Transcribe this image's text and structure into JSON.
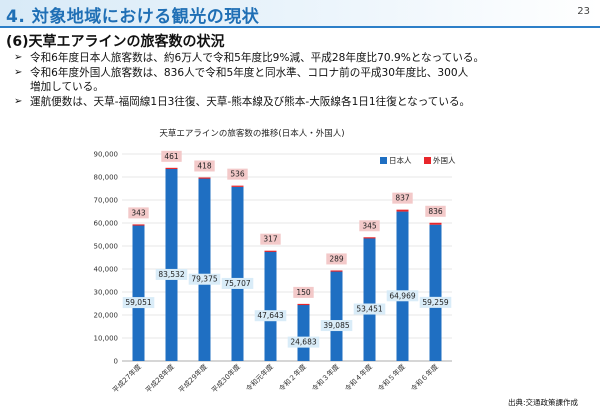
{
  "header": {
    "title": "4. 対象地域における観光の現状",
    "page_number": "23"
  },
  "section_title": "(6)天草エアラインの旅客数の状況",
  "bullets": [
    "令和6年度日本人旅客数は、約6万人で令和5年度比9%減、平成28年度比70.9%となっている。",
    "令和6年度外国人旅客数は、836人で令和5年度と同水準、コロナ前の平成30年度比、300人",
    "増加している。",
    "運航便数は、天草-福岡線1日3往復、天草-熊本線及び熊本-大阪線各1日1往復となっている。"
  ],
  "source_note": "出典:交通政策課作成",
  "colors": {
    "japanese": "#1f6fc2",
    "foreign": "#e8262b",
    "header_text": "#1f6fb5",
    "japanese_label_bg": "#d9ecf8",
    "foreign_label_bg": "#f3c9c9"
  },
  "chart_data": {
    "type": "bar",
    "stacked": true,
    "title": "天草エアラインの旅客数の推移(日本人・外国人)",
    "categories": [
      "平成27年度",
      "平成28年度",
      "平成29年度",
      "平成30年度",
      "令和元年度",
      "令和２年度",
      "令和３年度",
      "令和４年度",
      "令和５年度",
      "令和６年度"
    ],
    "series": [
      {
        "name": "日本人",
        "values": [
          59051,
          83532,
          79375,
          75707,
          47643,
          24683,
          39085,
          53451,
          64969,
          59259
        ]
      },
      {
        "name": "外国人",
        "values": [
          343,
          461,
          418,
          536,
          317,
          150,
          289,
          345,
          837,
          836
        ]
      }
    ],
    "value_labels": {
      "japanese": [
        "59,051",
        "83,532",
        "79,375",
        "75,707",
        "47,643",
        "24,683",
        "39,085",
        "53,451",
        "64,969",
        "59,259"
      ],
      "foreign": [
        "343",
        "461",
        "418",
        "536",
        "317",
        "150",
        "289",
        "345",
        "837",
        "836"
      ]
    },
    "ylim": [
      0,
      90000
    ],
    "yticks": [
      "0",
      "10,000",
      "20,000",
      "30,000",
      "40,000",
      "50,000",
      "60,000",
      "70,000",
      "80,000",
      "90,000"
    ],
    "grid": true,
    "legend_position": "top-right"
  }
}
